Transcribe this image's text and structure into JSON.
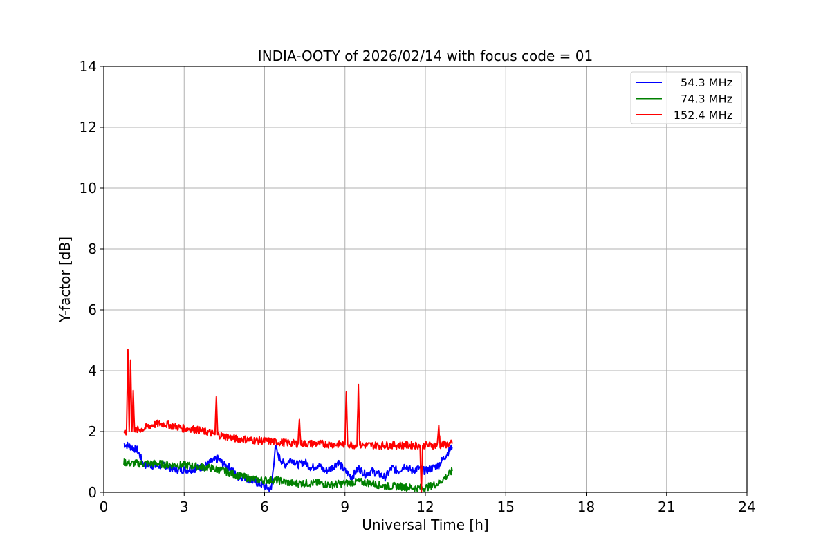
{
  "chart_data": {
    "type": "line",
    "title": "INDIA-OOTY of 2026/02/14 with focus code = 01",
    "xlabel": "Universal Time [h]",
    "ylabel": "Y-factor [dB]",
    "xlim": [
      0,
      24
    ],
    "ylim": [
      0,
      14
    ],
    "xticks": [
      0,
      3,
      6,
      9,
      12,
      15,
      18,
      21,
      24
    ],
    "yticks": [
      0,
      2,
      4,
      6,
      8,
      10,
      12,
      14
    ],
    "grid": true,
    "legend_position": "top-right",
    "series": [
      {
        "name": "54.3 MHz",
        "color": "#0000ff",
        "x": [
          0.75,
          1.0,
          1.25,
          1.5,
          1.75,
          2.0,
          2.25,
          2.5,
          2.75,
          3.0,
          3.25,
          3.5,
          3.75,
          4.0,
          4.25,
          4.5,
          4.75,
          5.0,
          5.25,
          5.5,
          5.75,
          6.0,
          6.25,
          6.4,
          6.5,
          6.75,
          7.0,
          7.25,
          7.5,
          7.75,
          8.0,
          8.25,
          8.5,
          8.75,
          9.0,
          9.25,
          9.5,
          9.75,
          10.0,
          10.25,
          10.5,
          10.75,
          11.0,
          11.25,
          11.5,
          11.75,
          12.0,
          12.25,
          12.5,
          12.75,
          13.0
        ],
        "y": [
          1.6,
          1.5,
          1.4,
          0.9,
          0.9,
          0.85,
          0.9,
          0.8,
          0.75,
          0.75,
          0.75,
          0.8,
          0.85,
          1.0,
          1.1,
          0.9,
          0.8,
          0.5,
          0.5,
          0.4,
          0.3,
          0.2,
          0.1,
          1.5,
          1.2,
          0.9,
          1.1,
          0.9,
          1.0,
          0.8,
          0.9,
          0.7,
          0.8,
          1.0,
          0.7,
          0.5,
          0.8,
          0.6,
          0.7,
          0.6,
          0.5,
          0.8,
          0.7,
          0.9,
          0.7,
          0.8,
          0.7,
          0.8,
          0.9,
          1.2,
          1.5
        ]
      },
      {
        "name": "74.3 MHz",
        "color": "#008000",
        "x": [
          0.75,
          1.0,
          1.5,
          2.0,
          2.5,
          3.0,
          3.5,
          4.0,
          4.5,
          5.0,
          5.5,
          5.8,
          6.0,
          6.5,
          7.0,
          7.5,
          8.0,
          8.5,
          9.0,
          9.5,
          10.0,
          10.5,
          11.0,
          11.5,
          12.0,
          12.5,
          13.0
        ],
        "y": [
          1.0,
          0.95,
          0.95,
          0.95,
          0.9,
          0.9,
          0.85,
          0.8,
          0.7,
          0.55,
          0.45,
          0.4,
          0.4,
          0.4,
          0.3,
          0.3,
          0.3,
          0.25,
          0.3,
          0.35,
          0.3,
          0.2,
          0.2,
          0.15,
          0.15,
          0.3,
          0.7
        ]
      },
      {
        "name": "152.4 MHz",
        "color": "#ff0000",
        "x": [
          0.75,
          0.85,
          0.9,
          0.95,
          1.0,
          1.05,
          1.1,
          1.15,
          1.25,
          1.5,
          1.75,
          2.0,
          2.25,
          2.5,
          2.75,
          3.0,
          3.25,
          3.5,
          3.75,
          4.0,
          4.15,
          4.2,
          4.25,
          4.5,
          4.75,
          5.0,
          5.25,
          5.5,
          5.75,
          6.0,
          6.25,
          6.5,
          7.0,
          7.25,
          7.3,
          7.35,
          7.5,
          8.0,
          8.5,
          9.0,
          9.05,
          9.1,
          9.45,
          9.5,
          9.55,
          10.0,
          10.5,
          11.0,
          11.5,
          11.8,
          11.85,
          11.9,
          12.0,
          12.45,
          12.5,
          12.55,
          13.0
        ],
        "y": [
          2.0,
          2.0,
          4.7,
          2.0,
          4.35,
          2.0,
          3.35,
          2.0,
          2.05,
          2.1,
          2.2,
          2.25,
          2.25,
          2.2,
          2.15,
          2.1,
          2.1,
          2.05,
          2.0,
          1.95,
          1.9,
          3.15,
          1.9,
          1.85,
          1.8,
          1.75,
          1.75,
          1.72,
          1.7,
          1.7,
          1.68,
          1.65,
          1.62,
          1.6,
          2.4,
          1.6,
          1.6,
          1.6,
          1.58,
          1.58,
          3.3,
          1.58,
          1.55,
          3.55,
          1.55,
          1.55,
          1.55,
          1.55,
          1.55,
          1.55,
          0.0,
          1.55,
          1.55,
          1.55,
          2.2,
          1.55,
          1.6
        ]
      }
    ]
  }
}
